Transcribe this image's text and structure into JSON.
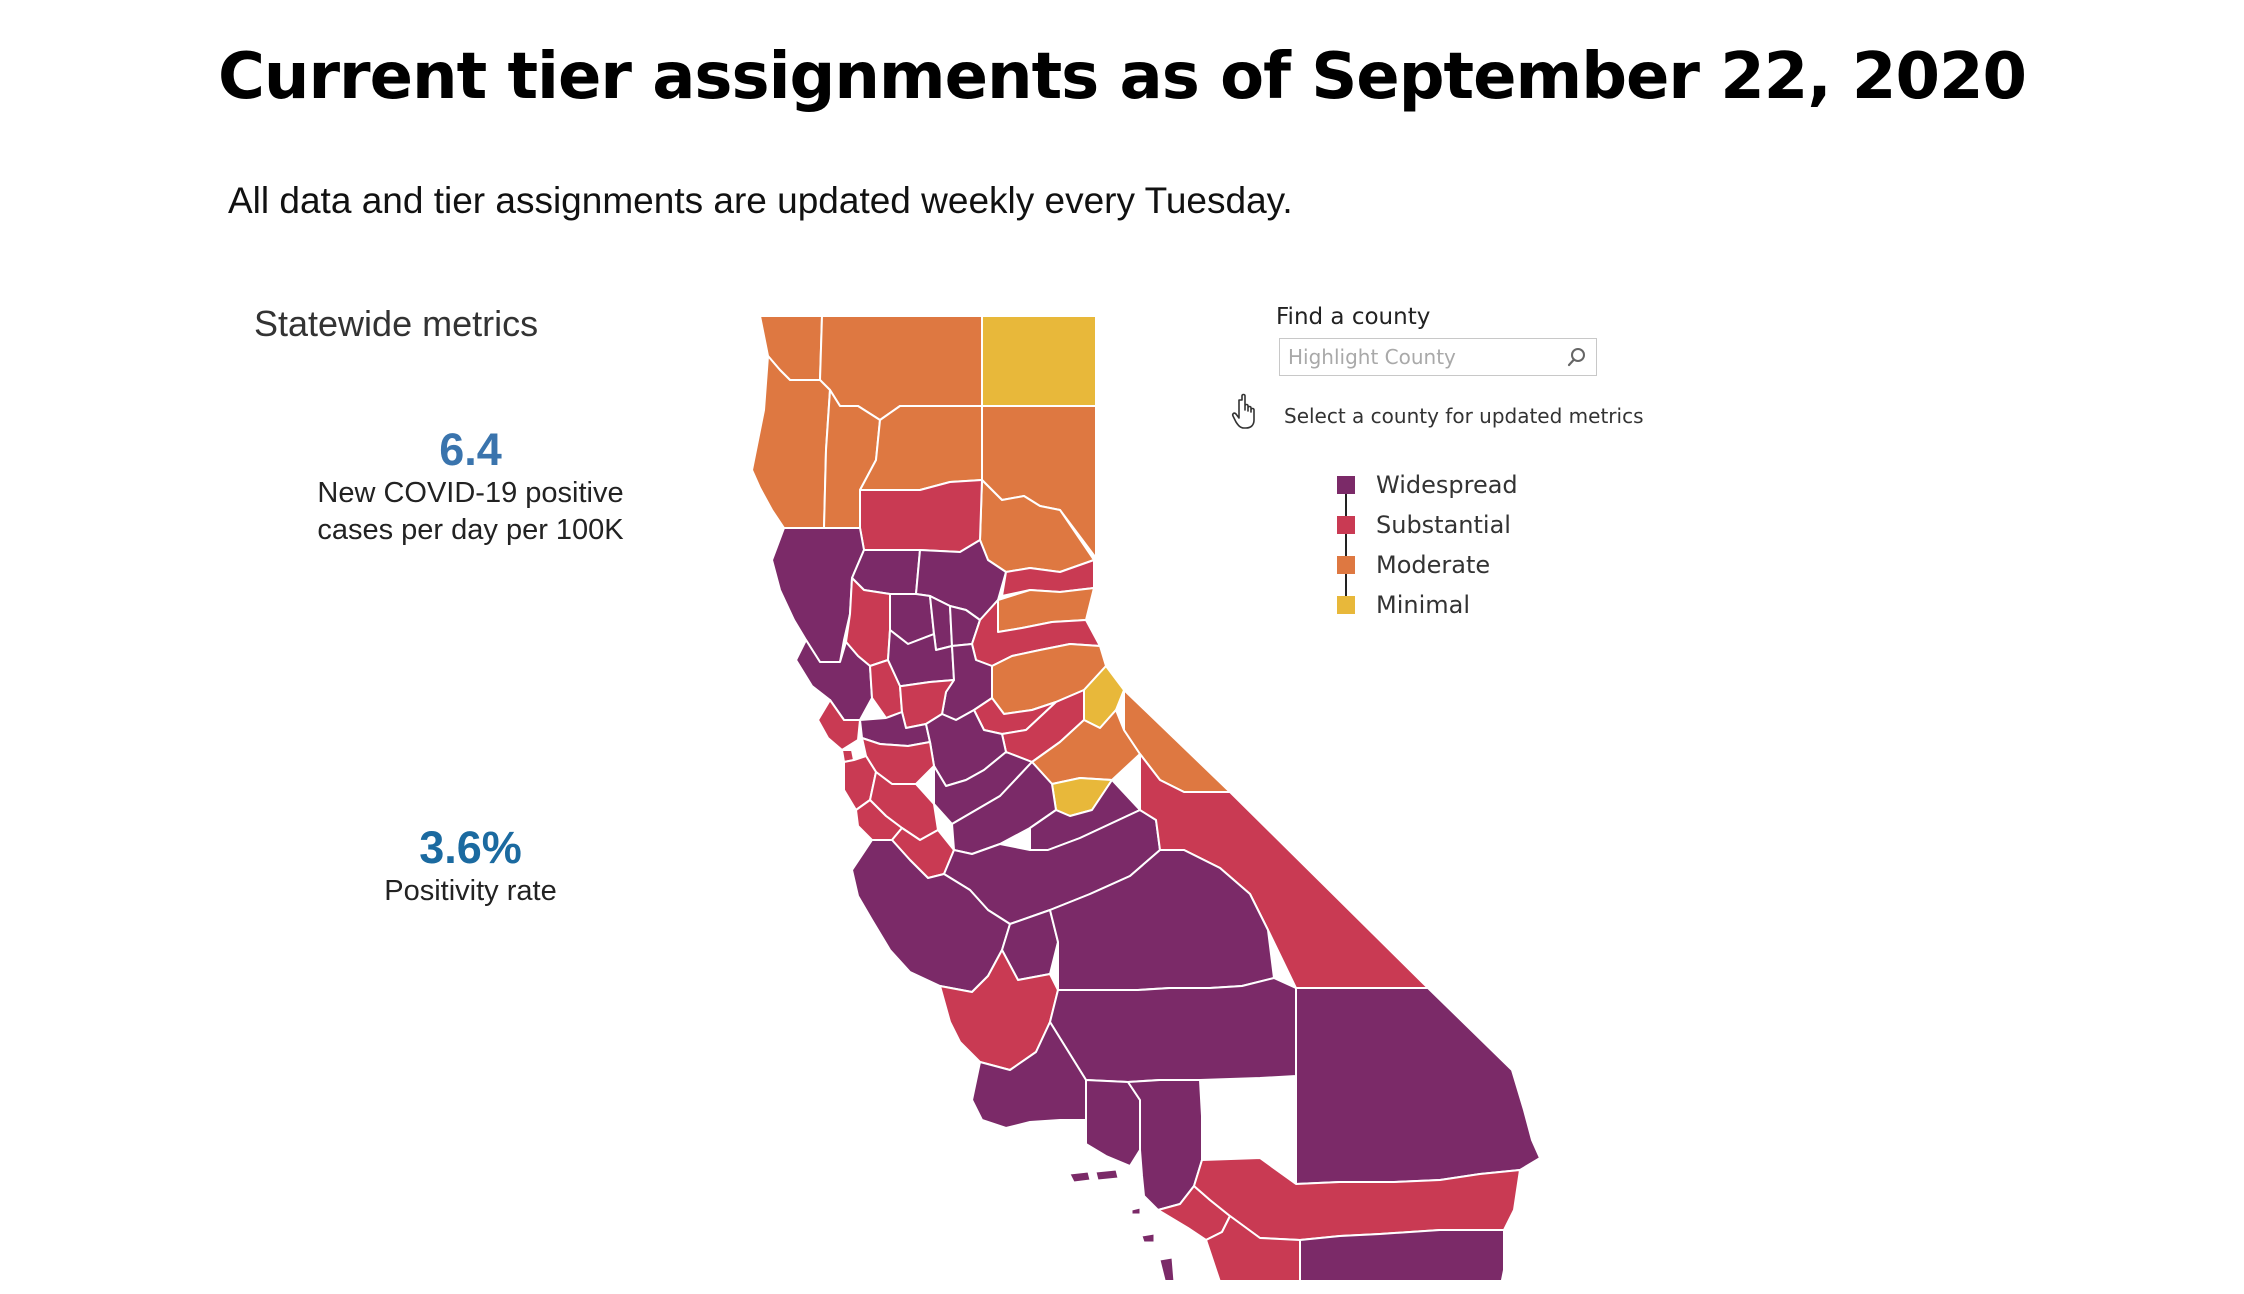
{
  "page": {
    "title": "Current tier assignments as of September 22, 2020",
    "subtitle": "All data and tier assignments are updated weekly every Tuesday."
  },
  "metrics": {
    "heading": "Statewide metrics",
    "case_rate": {
      "value": "6.4",
      "label": "New COVID-19 positive\ncases per day per 100K"
    },
    "positivity": {
      "value": "3.6%",
      "label": "Positivity rate"
    }
  },
  "search": {
    "label": "Find a county",
    "placeholder": "Highlight County",
    "value": "",
    "hint": "Select a county for updated metrics"
  },
  "legend": {
    "items": [
      {
        "label": "Widespread",
        "color": "#7b2a68"
      },
      {
        "label": "Substantial",
        "color": "#c93a53"
      },
      {
        "label": "Moderate",
        "color": "#de7841"
      },
      {
        "label": "Minimal",
        "color": "#e8b83a"
      }
    ]
  },
  "colors": {
    "widespread": "#7b2a68",
    "substantial": "#c93a53",
    "moderate": "#de7841",
    "minimal": "#e8b83a",
    "metric_blue": "#3a74ad"
  },
  "icons": {
    "search": "search-icon",
    "pointer": "hand-pointer-icon"
  }
}
